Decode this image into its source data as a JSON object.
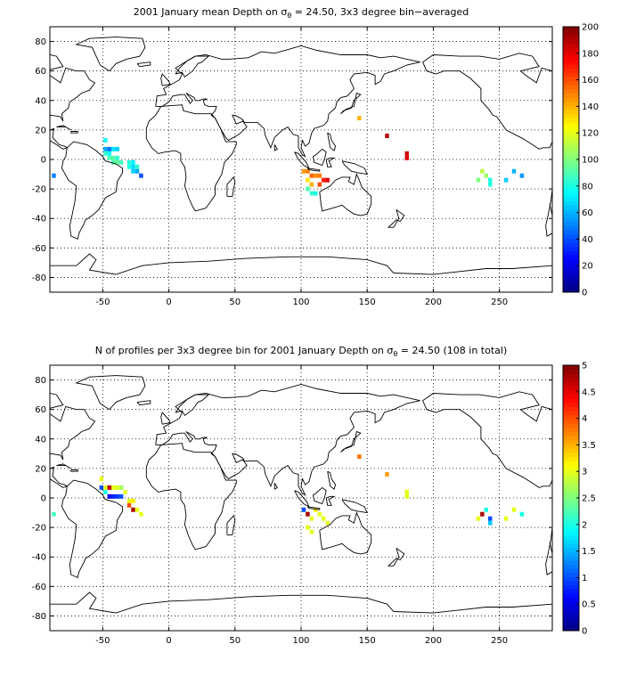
{
  "colors": {
    "coast": "#000000",
    "grid": "#000000",
    "colormap": "jet"
  },
  "panels": [
    {
      "title_pre": "2001 January mean Depth on σ",
      "title_sub": "θ",
      "title_post": " = 24.50, 3x3 degree bin−averaged",
      "colorbar_ticks": [
        "0",
        "20",
        "40",
        "60",
        "80",
        "100",
        "120",
        "140",
        "160",
        "180",
        "200"
      ],
      "cmin": 0,
      "cmax": 200
    },
    {
      "title_pre": "N of profiles per 3x3 degree bin for 2001 January Depth on σ",
      "title_sub": "θ",
      "title_post": " = 24.50 (108 in total)",
      "colorbar_ticks": [
        "0",
        "0.5",
        "1",
        "1.5",
        "2",
        "2.5",
        "3",
        "3.5",
        "4",
        "4.5",
        "5"
      ],
      "cmin": 0,
      "cmax": 5
    }
  ],
  "axes": {
    "x_ticks": [
      "-50",
      "0",
      "50",
      "100",
      "150",
      "200",
      "250"
    ],
    "y_ticks": [
      "80",
      "60",
      "40",
      "20",
      "0",
      "-20",
      "-40",
      "-60",
      "-80"
    ]
  },
  "chart_data": [
    {
      "type": "heatmap",
      "title": "2001 January mean Depth on σθ = 24.50, 3x3 degree bin−averaged",
      "xlim": [
        -90,
        290
      ],
      "ylim": [
        -90,
        90
      ],
      "grid": true,
      "colorbar": {
        "min": 0,
        "max": 200,
        "location": "right"
      },
      "cells": [
        {
          "lon": -48,
          "lat": 13,
          "value": 78
        },
        {
          "lon": -48,
          "lat": 7,
          "value": 58
        },
        {
          "lon": -45,
          "lat": 7,
          "value": 48
        },
        {
          "lon": -42,
          "lat": 7,
          "value": 70
        },
        {
          "lon": -39,
          "lat": 7,
          "value": 66
        },
        {
          "lon": -48,
          "lat": 4,
          "value": 86
        },
        {
          "lon": -45,
          "lat": 4,
          "value": 75
        },
        {
          "lon": -45,
          "lat": 1,
          "value": 90
        },
        {
          "lon": -42,
          "lat": 1,
          "value": 92
        },
        {
          "lon": -39,
          "lat": 1,
          "value": 85
        },
        {
          "lon": -42,
          "lat": -2,
          "value": 90
        },
        {
          "lon": -39,
          "lat": -2,
          "value": 95
        },
        {
          "lon": -36,
          "lat": -2,
          "value": 88
        },
        {
          "lon": -30,
          "lat": -2,
          "value": 82
        },
        {
          "lon": -27,
          "lat": -2,
          "value": 72
        },
        {
          "lon": -30,
          "lat": -5,
          "value": 80
        },
        {
          "lon": -27,
          "lat": -5,
          "value": 68
        },
        {
          "lon": -24,
          "lat": -5,
          "value": 84
        },
        {
          "lon": -27,
          "lat": -8,
          "value": 66
        },
        {
          "lon": -24,
          "lat": -8,
          "value": 58
        },
        {
          "lon": -21,
          "lat": -11,
          "value": 40
        },
        {
          "lon": -87,
          "lat": -11,
          "value": 50
        },
        {
          "lon": 144,
          "lat": 28,
          "value": 140
        },
        {
          "lon": 165,
          "lat": 16,
          "value": 190
        },
        {
          "lon": 180,
          "lat": 4,
          "value": 185
        },
        {
          "lon": 180,
          "lat": 1,
          "value": 182
        },
        {
          "lon": 102,
          "lat": -8,
          "value": 145
        },
        {
          "lon": 105,
          "lat": -8,
          "value": 150
        },
        {
          "lon": 108,
          "lat": -11,
          "value": 155
        },
        {
          "lon": 111,
          "lat": -11,
          "value": 148
        },
        {
          "lon": 114,
          "lat": -11,
          "value": 150
        },
        {
          "lon": 117,
          "lat": -14,
          "value": 170
        },
        {
          "lon": 120,
          "lat": -14,
          "value": 180
        },
        {
          "lon": 105,
          "lat": -14,
          "value": 130
        },
        {
          "lon": 108,
          "lat": -17,
          "value": 140
        },
        {
          "lon": 114,
          "lat": -17,
          "value": 160
        },
        {
          "lon": 105,
          "lat": -20,
          "value": 90
        },
        {
          "lon": 108,
          "lat": -23,
          "value": 85
        },
        {
          "lon": 111,
          "lat": -23,
          "value": 80
        },
        {
          "lon": 237,
          "lat": -8,
          "value": 112
        },
        {
          "lon": 240,
          "lat": -11,
          "value": 105
        },
        {
          "lon": 234,
          "lat": -14,
          "value": 100
        },
        {
          "lon": 243,
          "lat": -14,
          "value": 80
        },
        {
          "lon": 243,
          "lat": -17,
          "value": 82
        },
        {
          "lon": 255,
          "lat": -14,
          "value": 65
        },
        {
          "lon": 261,
          "lat": -8,
          "value": 60
        },
        {
          "lon": 267,
          "lat": -11,
          "value": 55
        }
      ]
    },
    {
      "type": "heatmap",
      "title": "N of profiles per 3x3 degree bin for 2001 January Depth on σθ = 24.50 (108 in total)",
      "xlim": [
        -90,
        290
      ],
      "ylim": [
        -90,
        90
      ],
      "grid": true,
      "colorbar": {
        "min": 0,
        "max": 5,
        "location": "right"
      },
      "cells": [
        {
          "lon": -51,
          "lat": 13,
          "value": 3
        },
        {
          "lon": -51,
          "lat": 7,
          "value": 1
        },
        {
          "lon": -48,
          "lat": 7,
          "value": 3
        },
        {
          "lon": -45,
          "lat": 7,
          "value": 4.7
        },
        {
          "lon": -42,
          "lat": 7,
          "value": 3
        },
        {
          "lon": -39,
          "lat": 7,
          "value": 3
        },
        {
          "lon": -36,
          "lat": 7,
          "value": 2.7
        },
        {
          "lon": -33,
          "lat": 4,
          "value": 3
        },
        {
          "lon": -48,
          "lat": 4,
          "value": 2
        },
        {
          "lon": -45,
          "lat": 1,
          "value": 0.6
        },
        {
          "lon": -42,
          "lat": 1,
          "value": 0.8
        },
        {
          "lon": -39,
          "lat": 1,
          "value": 0.9
        },
        {
          "lon": -36,
          "lat": 1,
          "value": 1
        },
        {
          "lon": -30,
          "lat": -2,
          "value": 3
        },
        {
          "lon": -27,
          "lat": -2,
          "value": 3.2
        },
        {
          "lon": -30,
          "lat": -5,
          "value": 4
        },
        {
          "lon": -27,
          "lat": -8,
          "value": 4.8
        },
        {
          "lon": -24,
          "lat": -8,
          "value": 3
        },
        {
          "lon": -21,
          "lat": -11,
          "value": 3
        },
        {
          "lon": -87,
          "lat": -11,
          "value": 2.2
        },
        {
          "lon": 144,
          "lat": 28,
          "value": 3.8
        },
        {
          "lon": 165,
          "lat": 16,
          "value": 3.6
        },
        {
          "lon": 180,
          "lat": 4,
          "value": 3
        },
        {
          "lon": 180,
          "lat": 1,
          "value": 3
        },
        {
          "lon": 102,
          "lat": -8,
          "value": 1
        },
        {
          "lon": 105,
          "lat": -11,
          "value": 4.8
        },
        {
          "lon": 108,
          "lat": -14,
          "value": 3
        },
        {
          "lon": 114,
          "lat": -11,
          "value": 3
        },
        {
          "lon": 117,
          "lat": -14,
          "value": 3
        },
        {
          "lon": 111,
          "lat": -8,
          "value": 3.2
        },
        {
          "lon": 120,
          "lat": -17,
          "value": 3
        },
        {
          "lon": 105,
          "lat": -20,
          "value": 3
        },
        {
          "lon": 108,
          "lat": -23,
          "value": 3
        },
        {
          "lon": 240,
          "lat": -8,
          "value": 2
        },
        {
          "lon": 237,
          "lat": -11,
          "value": 4.8
        },
        {
          "lon": 243,
          "lat": -14,
          "value": 1
        },
        {
          "lon": 243,
          "lat": -17,
          "value": 1.6
        },
        {
          "lon": 234,
          "lat": -14,
          "value": 3
        },
        {
          "lon": 255,
          "lat": -14,
          "value": 3
        },
        {
          "lon": 261,
          "lat": -8,
          "value": 3
        },
        {
          "lon": 267,
          "lat": -11,
          "value": 2
        }
      ]
    }
  ]
}
